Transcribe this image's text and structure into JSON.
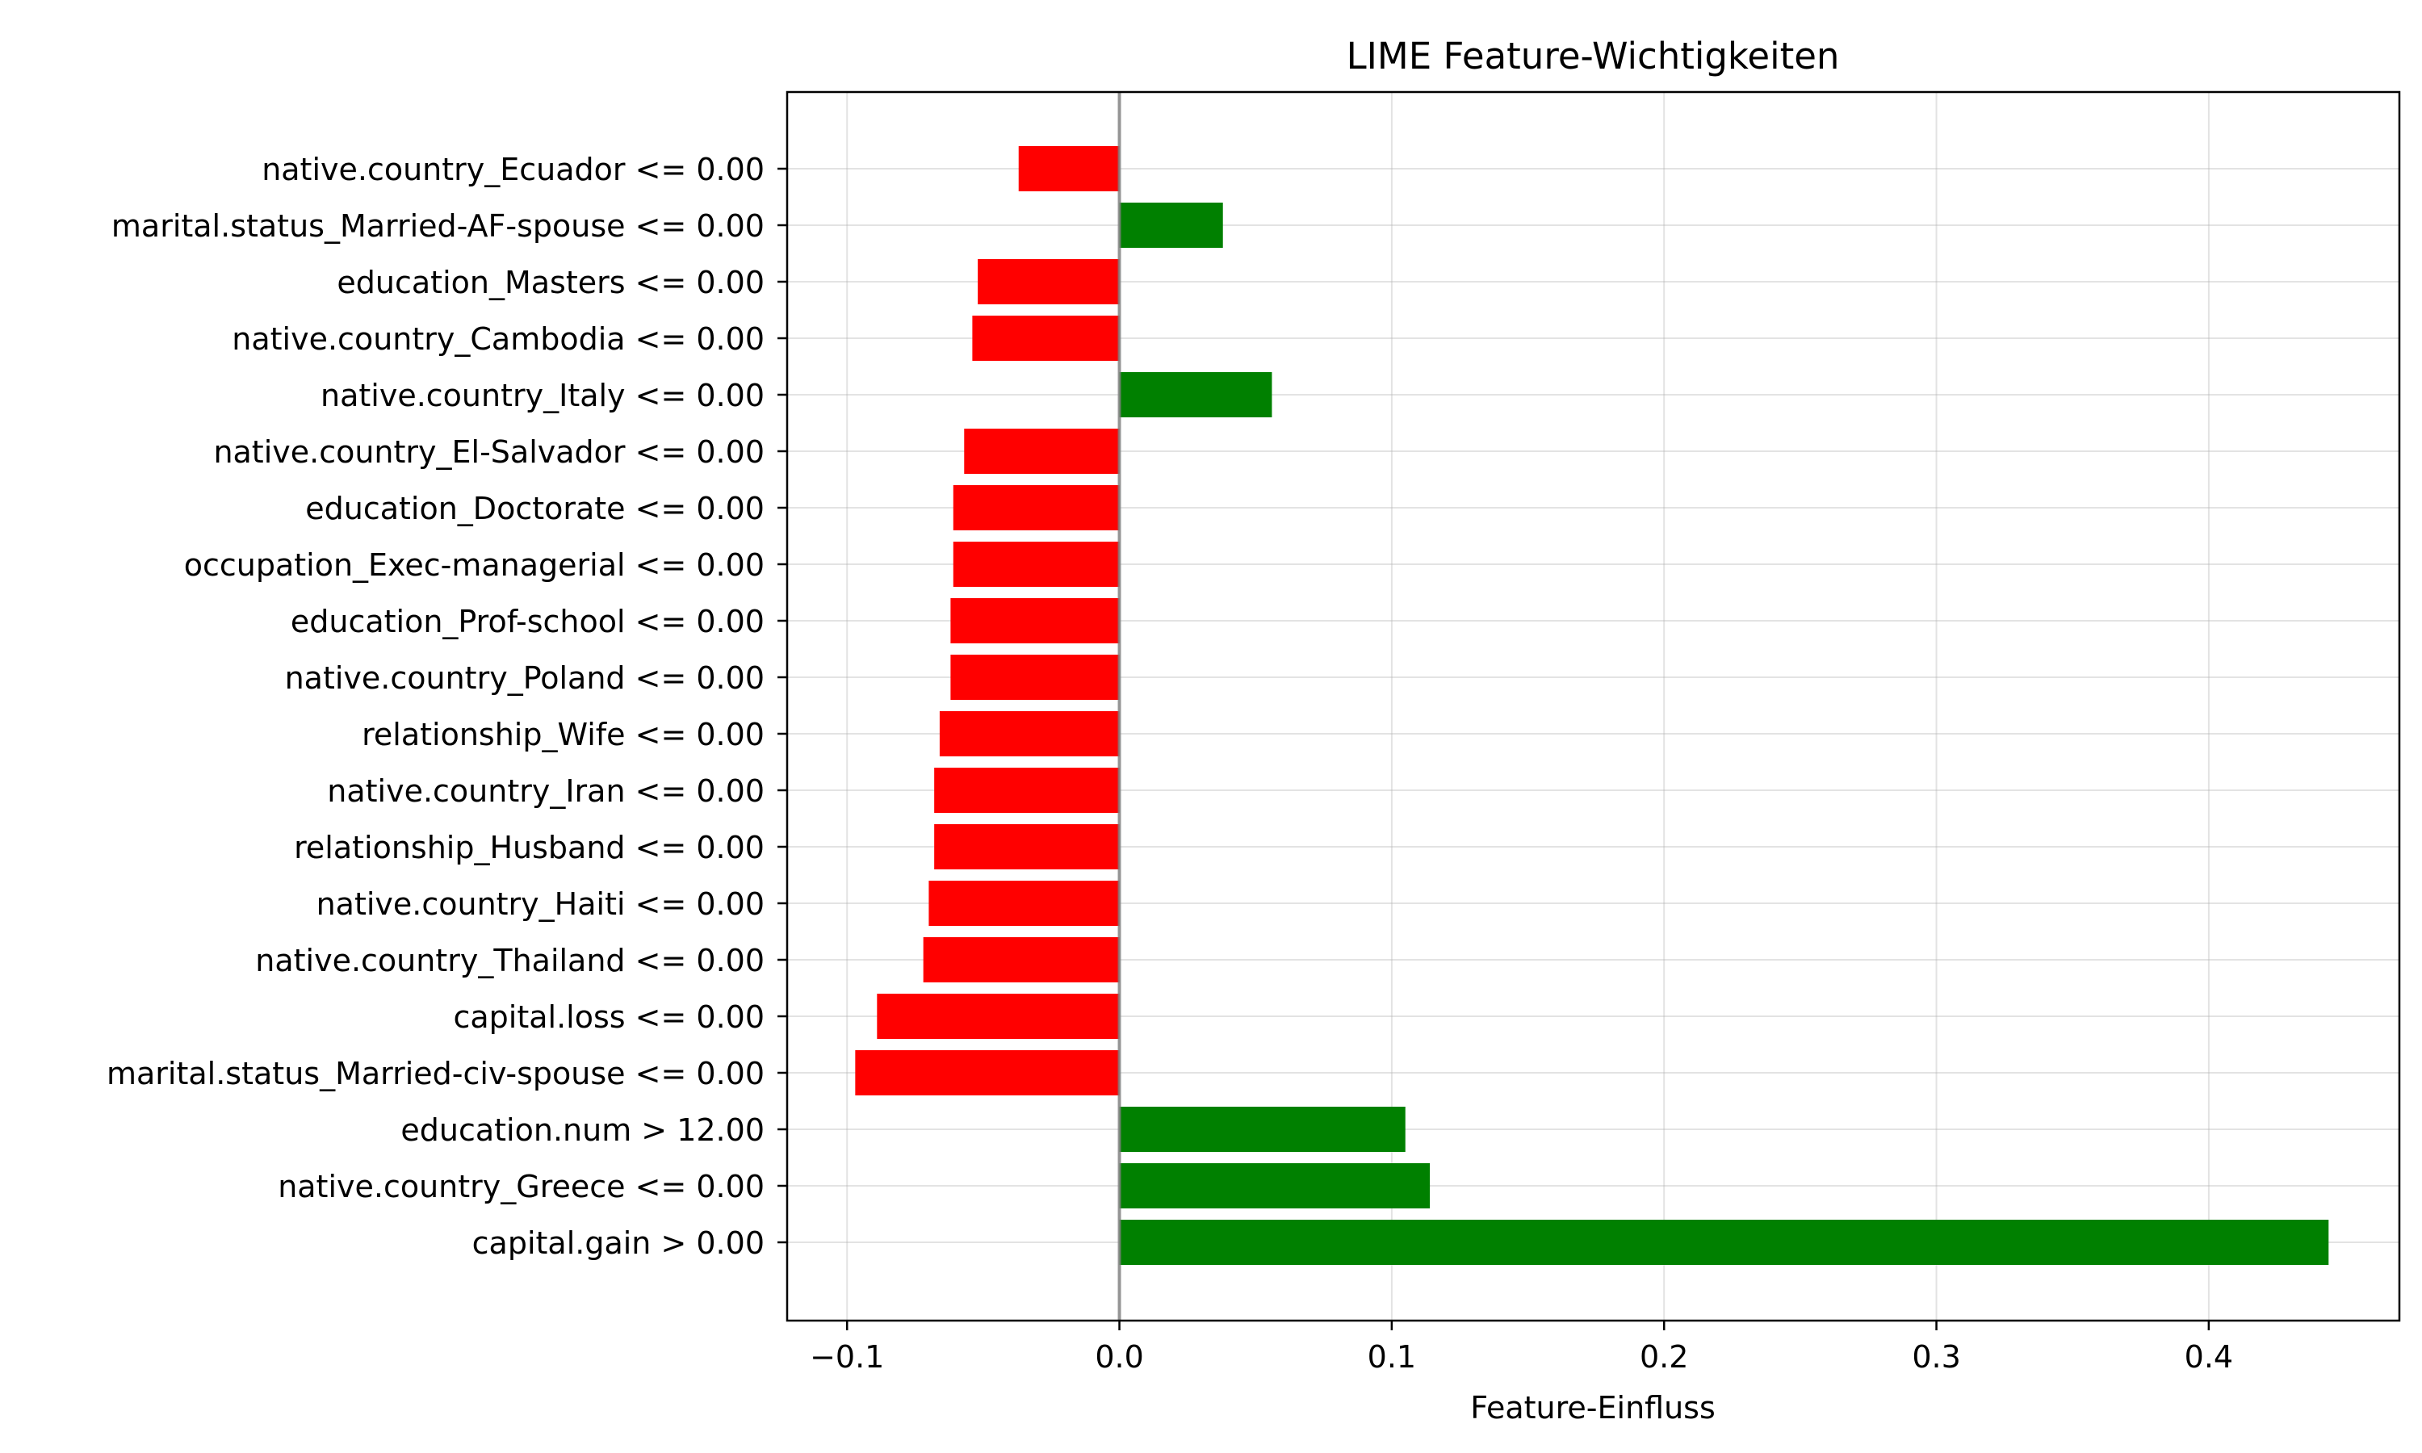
{
  "chart_data": {
    "type": "bar",
    "orientation": "horizontal",
    "title": "LIME Feature-Wichtigkeiten",
    "xlabel": "Feature-Einfluss",
    "ylabel": "",
    "xlim": [
      -0.122,
      0.47
    ],
    "xticks": [
      -0.1,
      0.0,
      0.1,
      0.2,
      0.3,
      0.4
    ],
    "xtick_labels": [
      "−0.1",
      "0.0",
      "0.1",
      "0.2",
      "0.3",
      "0.4"
    ],
    "grid": true,
    "colors": {
      "positive": "#008000",
      "negative": "#ff0000",
      "zero_line": "#808080"
    },
    "categories": [
      "native.country_Ecuador <= 0.00",
      "marital.status_Married-AF-spouse <= 0.00",
      "education_Masters <= 0.00",
      "native.country_Cambodia <= 0.00",
      "native.country_Italy <= 0.00",
      "native.country_El-Salvador <= 0.00",
      "education_Doctorate <= 0.00",
      "occupation_Exec-managerial <= 0.00",
      "education_Prof-school <= 0.00",
      "native.country_Poland <= 0.00",
      "relationship_Wife <= 0.00",
      "native.country_Iran <= 0.00",
      "relationship_Husband <= 0.00",
      "native.country_Haiti <= 0.00",
      "native.country_Thailand <= 0.00",
      "capital.loss <= 0.00",
      "marital.status_Married-civ-spouse <= 0.00",
      "education.num > 12.00",
      "native.country_Greece <= 0.00",
      "capital.gain > 0.00"
    ],
    "values": [
      -0.037,
      0.038,
      -0.052,
      -0.054,
      0.056,
      -0.057,
      -0.061,
      -0.061,
      -0.062,
      -0.062,
      -0.066,
      -0.068,
      -0.068,
      -0.07,
      -0.072,
      -0.089,
      -0.097,
      0.105,
      0.114,
      0.444
    ]
  }
}
